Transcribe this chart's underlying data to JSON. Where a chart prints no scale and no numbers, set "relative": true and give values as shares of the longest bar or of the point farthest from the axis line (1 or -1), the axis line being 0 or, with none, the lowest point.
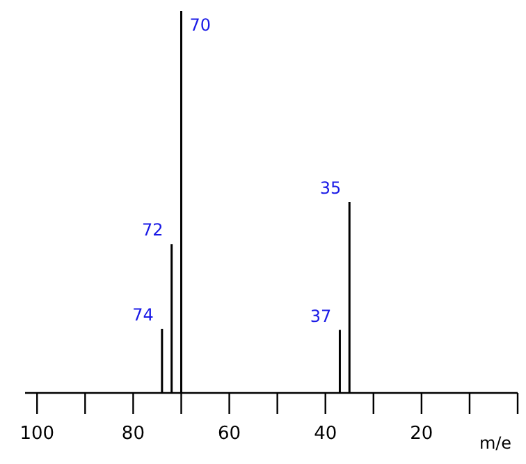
{
  "chart_data": {
    "type": "bar",
    "relative": true,
    "x": [
      74,
      72,
      70,
      37,
      35
    ],
    "values": [
      0.168,
      0.39,
      1,
      0.165,
      0.5
    ],
    "color": "#000000",
    "xlim": [
      102.5,
      0
    ],
    "xticks": [
      100,
      {
        "value": 90,
        "label": null
      },
      80,
      {
        "value": 70,
        "label": null
      },
      60,
      {
        "value": 50,
        "label": null
      },
      40,
      {
        "value": 30,
        "label": null
      },
      20,
      {
        "value": 10,
        "label": null
      },
      {
        "value": 0,
        "label": null
      }
    ],
    "xlabel": "m/e",
    "annotations": [
      {
        "text": "74",
        "x": 74,
        "y": 0.168
      },
      {
        "text": "72",
        "x": 72,
        "y": 0.39
      },
      {
        "text": "70",
        "x": 70,
        "y": 1
      },
      {
        "text": "37",
        "x": 37,
        "y": 0.165
      },
      {
        "text": "35",
        "x": 35,
        "y": 0.5
      }
    ]
  }
}
